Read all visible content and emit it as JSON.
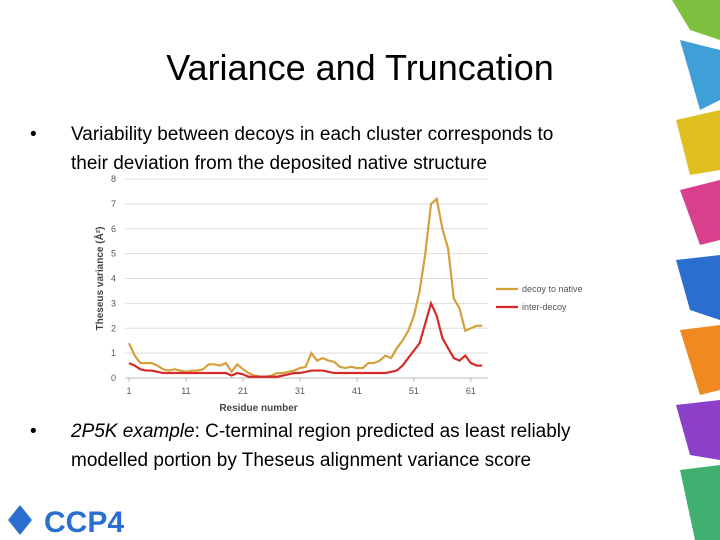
{
  "title": "Variance and Truncation",
  "bullets": [
    {
      "lines": [
        "Variability between decoys in each cluster corresponds to",
        "their deviation from the deposited native structure"
      ]
    },
    {
      "emphasis": "2P5K example",
      "lines": [
        ": C-terminal region predicted as least reliably",
        "modelled portion by Theseus alignment variance score"
      ]
    }
  ],
  "logo": "CCP4",
  "chart_data": {
    "type": "line",
    "x_label": "Residue number",
    "y_label": "Theseus variance (Å²)",
    "x": [
      1,
      2,
      3,
      4,
      5,
      6,
      7,
      8,
      9,
      10,
      11,
      12,
      13,
      14,
      15,
      16,
      17,
      18,
      19,
      20,
      21,
      22,
      23,
      24,
      25,
      26,
      27,
      28,
      29,
      30,
      31,
      32,
      33,
      34,
      35,
      36,
      37,
      38,
      39,
      40,
      41,
      42,
      43,
      44,
      45,
      46,
      47,
      48,
      49,
      50,
      51,
      52,
      53,
      54,
      55,
      56,
      57,
      58,
      59,
      60,
      61,
      62,
      63
    ],
    "series": [
      {
        "name": "decoy to native",
        "color": "#d4a03c",
        "values": [
          1.4,
          0.9,
          0.6,
          0.6,
          0.6,
          0.5,
          0.35,
          0.3,
          0.35,
          0.3,
          0.25,
          0.3,
          0.3,
          0.35,
          0.55,
          0.55,
          0.5,
          0.6,
          0.25,
          0.55,
          0.35,
          0.2,
          0.1,
          0.05,
          0.05,
          0.1,
          0.2,
          0.2,
          0.25,
          0.3,
          0.4,
          0.45,
          1.0,
          0.7,
          0.8,
          0.7,
          0.65,
          0.45,
          0.4,
          0.45,
          0.4,
          0.4,
          0.6,
          0.6,
          0.7,
          0.9,
          0.8,
          1.2,
          1.5,
          1.9,
          2.5,
          3.5,
          5.0,
          7.0,
          7.2,
          6.0,
          5.2,
          3.2,
          2.8,
          1.9,
          2.0,
          2.1,
          2.1
        ]
      },
      {
        "name": "inter-decoy",
        "color": "#d42a2a",
        "values": [
          0.6,
          0.5,
          0.35,
          0.3,
          0.3,
          0.25,
          0.2,
          0.2,
          0.2,
          0.2,
          0.2,
          0.2,
          0.2,
          0.2,
          0.2,
          0.2,
          0.2,
          0.2,
          0.1,
          0.2,
          0.15,
          0.05,
          0.05,
          0.05,
          0.05,
          0.05,
          0.05,
          0.1,
          0.15,
          0.2,
          0.2,
          0.25,
          0.3,
          0.3,
          0.3,
          0.25,
          0.2,
          0.2,
          0.2,
          0.2,
          0.2,
          0.2,
          0.2,
          0.2,
          0.2,
          0.2,
          0.25,
          0.3,
          0.5,
          0.8,
          1.1,
          1.4,
          2.2,
          3.0,
          2.5,
          1.6,
          1.2,
          0.8,
          0.7,
          0.9,
          0.6,
          0.5,
          0.5
        ]
      }
    ],
    "xlim": [
      1,
      64
    ],
    "xticks": [
      1,
      11,
      21,
      31,
      41,
      51,
      61
    ],
    "ylim": [
      0,
      8
    ],
    "yticks": [
      0,
      1,
      2,
      3,
      4,
      5,
      6,
      7,
      8
    ],
    "grid": true,
    "legend": "right"
  }
}
